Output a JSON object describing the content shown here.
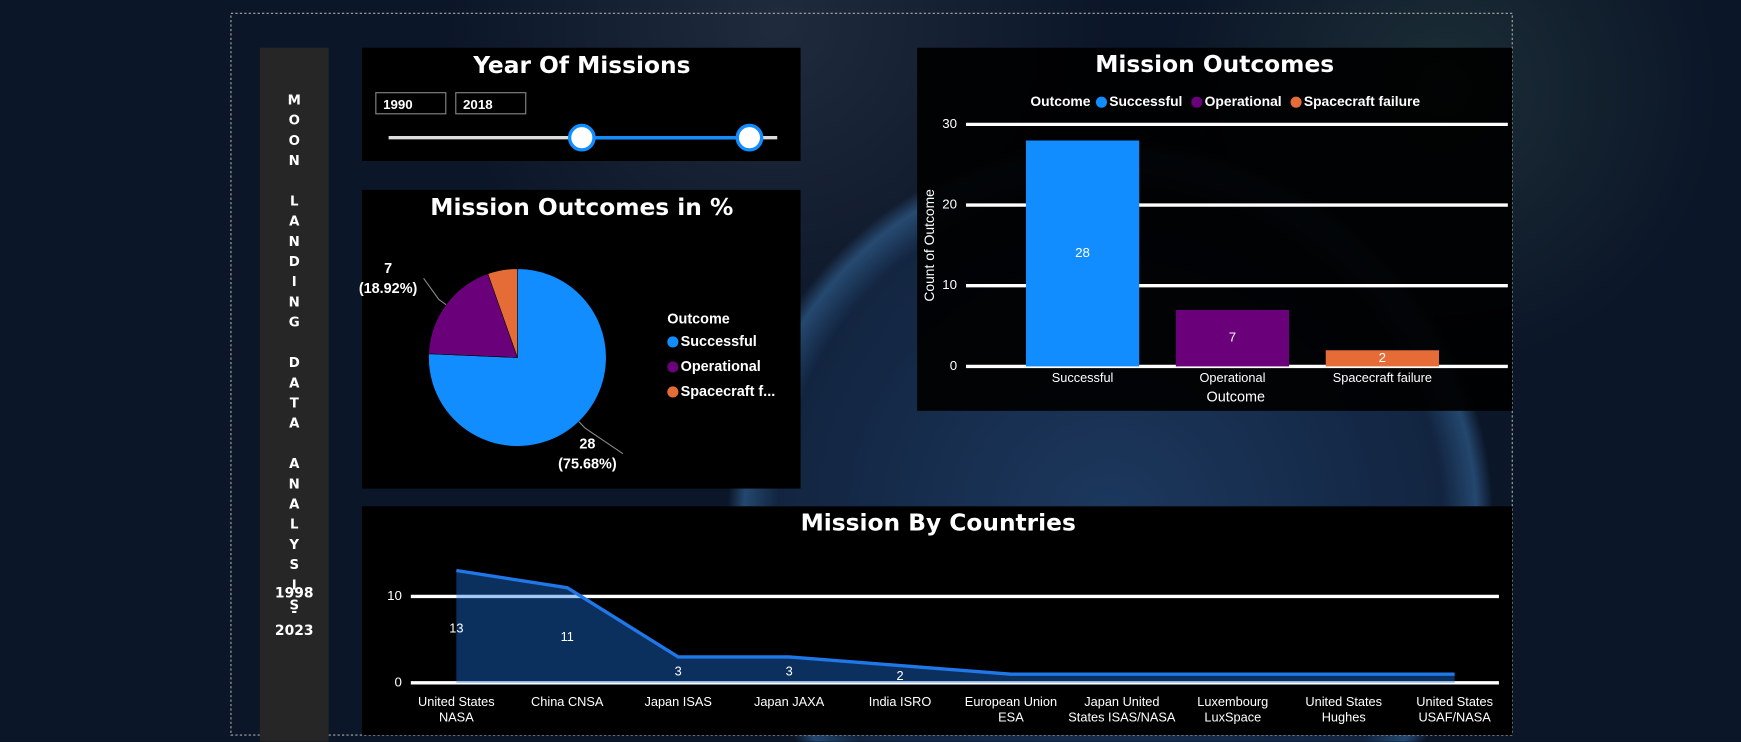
{
  "sidebar": {
    "title": "MOON LANDING DATA ANALYSIS",
    "years": "1998 - 2023"
  },
  "slicer": {
    "title": "Year Of Missions",
    "start": 1990,
    "end": 2018
  },
  "chart_data": [
    {
      "type": "pie",
      "title": "Mission Outcomes in %",
      "legend_title": "Outcome",
      "categories": [
        "Successful",
        "Operational",
        "Spacecraft f..."
      ],
      "values": [
        28,
        7,
        2
      ],
      "percent_labels": [
        "(75.68%)",
        "(18.92%)",
        null
      ],
      "colors": [
        "#118dff",
        "#6b007b",
        "#e66c37"
      ]
    },
    {
      "type": "bar",
      "title": "Mission Outcomes",
      "legend_title": "Outcome",
      "x_label": "Outcome",
      "y_label": "Count of Outcome",
      "categories": [
        "Successful",
        "Operational",
        "Spacecraft failure"
      ],
      "values": [
        28,
        7,
        2
      ],
      "colors": [
        "#118dff",
        "#6b007b",
        "#e66c37"
      ],
      "ylim": [
        0,
        30
      ],
      "yticks": [
        0,
        10,
        20,
        30
      ],
      "grid": true
    },
    {
      "type": "area",
      "title": "Mission By Countries",
      "categories": [
        "United States NASA",
        "China CNSA",
        "Japan ISAS",
        "Japan JAXA",
        "India ISRO",
        "European Union ESA",
        "Japan United States ISAS/NASA",
        "Luxembourg LuxSpace",
        "United States Hughes",
        "United States USAF/NASA"
      ],
      "values": [
        13,
        11,
        3,
        3,
        2,
        1,
        1,
        1,
        1,
        1
      ],
      "value_labels": [
        "13",
        "11",
        "3",
        "3",
        "2",
        null,
        null,
        null,
        null,
        null
      ],
      "color": "#1f77e8",
      "ylim": [
        0,
        14
      ],
      "yticks": [
        0,
        10
      ],
      "grid": true
    }
  ]
}
